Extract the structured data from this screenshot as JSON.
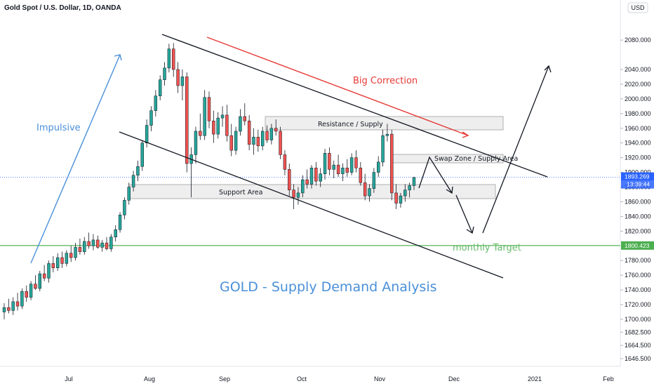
{
  "chart_data": {
    "type": "candlestick",
    "title": "Gold Spot / U.S. Dollar, 1D, OANDA",
    "currency": "USD",
    "ylim": [
      1636,
      2125
    ],
    "y_ticks": [
      2080,
      2040,
      2020,
      2000,
      1980,
      1960,
      1940,
      1920,
      1900,
      1880,
      1860,
      1840,
      1820,
      1780,
      1760,
      1740,
      1720,
      1700,
      1682.5,
      1664.5,
      1646.5
    ],
    "y_tick_labels": [
      "2080.000",
      "2040.000",
      "2020.000",
      "2000.000",
      "1980.000",
      "1960.000",
      "1940.000",
      "1920.000",
      "1900.000",
      "1880.000",
      "1860.000",
      "1840.000",
      "1820.000",
      "1780.000",
      "1760.000",
      "1740.000",
      "1720.000",
      "1700.000",
      "1682.500",
      "1664.500",
      "1646.500"
    ],
    "x_ticks": [
      "Jul",
      "Aug",
      "Sep",
      "Oct",
      "Nov",
      "Dec",
      "2021",
      "Feb"
    ],
    "last_price": {
      "value": 1893.269,
      "label": "1893.269",
      "countdown": "13:39:44",
      "color": "#2962ff"
    },
    "target_price": {
      "value": 1800.423,
      "label": "1800.423",
      "color": "#4caf50"
    },
    "candles": [
      [
        1710,
        1722,
        1700,
        1716
      ],
      [
        1716,
        1728,
        1708,
        1712
      ],
      [
        1712,
        1730,
        1706,
        1724
      ],
      [
        1724,
        1736,
        1712,
        1718
      ],
      [
        1718,
        1742,
        1714,
        1738
      ],
      [
        1738,
        1746,
        1724,
        1730
      ],
      [
        1730,
        1752,
        1726,
        1748
      ],
      [
        1748,
        1760,
        1740,
        1742
      ],
      [
        1742,
        1766,
        1738,
        1762
      ],
      [
        1762,
        1774,
        1752,
        1756
      ],
      [
        1756,
        1780,
        1750,
        1776
      ],
      [
        1776,
        1786,
        1764,
        1770
      ],
      [
        1770,
        1790,
        1766,
        1784
      ],
      [
        1784,
        1792,
        1770,
        1776
      ],
      [
        1776,
        1794,
        1772,
        1790
      ],
      [
        1790,
        1800,
        1778,
        1784
      ],
      [
        1784,
        1804,
        1780,
        1798
      ],
      [
        1798,
        1810,
        1788,
        1792
      ],
      [
        1792,
        1812,
        1788,
        1806
      ],
      [
        1806,
        1818,
        1796,
        1800
      ],
      [
        1800,
        1816,
        1794,
        1808
      ],
      [
        1808,
        1814,
        1796,
        1798
      ],
      [
        1798,
        1808,
        1792,
        1804
      ],
      [
        1804,
        1812,
        1794,
        1796
      ],
      [
        1796,
        1816,
        1792,
        1812
      ],
      [
        1812,
        1828,
        1806,
        1822
      ],
      [
        1822,
        1846,
        1818,
        1842
      ],
      [
        1842,
        1866,
        1836,
        1862
      ],
      [
        1862,
        1886,
        1856,
        1880
      ],
      [
        1880,
        1902,
        1874,
        1896
      ],
      [
        1896,
        1916,
        1888,
        1908
      ],
      [
        1908,
        1944,
        1902,
        1940
      ],
      [
        1940,
        1972,
        1934,
        1964
      ],
      [
        1964,
        1990,
        1956,
        1984
      ],
      [
        1984,
        2012,
        1976,
        2004
      ],
      [
        2004,
        2032,
        1998,
        2026
      ],
      [
        2026,
        2050,
        2018,
        2042
      ],
      [
        2042,
        2075,
        2036,
        2068
      ],
      [
        2068,
        2076,
        2030,
        2040
      ],
      [
        2040,
        2050,
        2008,
        2018
      ],
      [
        2018,
        2040,
        1998,
        2030
      ],
      [
        2030,
        2036,
        1900,
        1912
      ],
      [
        1912,
        1934,
        1866,
        1924
      ],
      [
        1924,
        1962,
        1912,
        1956
      ],
      [
        1956,
        1980,
        1944,
        1950
      ],
      [
        1950,
        2012,
        1944,
        2002
      ],
      [
        2002,
        2010,
        1960,
        1970
      ],
      [
        1970,
        1984,
        1940,
        1952
      ],
      [
        1952,
        1982,
        1946,
        1974
      ],
      [
        1974,
        1990,
        1962,
        1978
      ],
      [
        1978,
        1992,
        1942,
        1950
      ],
      [
        1950,
        1966,
        1922,
        1930
      ],
      [
        1930,
        1962,
        1924,
        1956
      ],
      [
        1956,
        1986,
        1950,
        1976
      ],
      [
        1976,
        1994,
        1964,
        1970
      ],
      [
        1970,
        1978,
        1930,
        1938
      ],
      [
        1938,
        1960,
        1924,
        1948
      ],
      [
        1948,
        1958,
        1928,
        1936
      ],
      [
        1936,
        1962,
        1930,
        1956
      ],
      [
        1956,
        1964,
        1940,
        1944
      ],
      [
        1944,
        1966,
        1938,
        1960
      ],
      [
        1960,
        1972,
        1950,
        1956
      ],
      [
        1956,
        1962,
        1918,
        1924
      ],
      [
        1924,
        1930,
        1896,
        1904
      ],
      [
        1904,
        1912,
        1868,
        1876
      ],
      [
        1876,
        1884,
        1850,
        1866
      ],
      [
        1866,
        1880,
        1856,
        1872
      ],
      [
        1872,
        1896,
        1866,
        1890
      ],
      [
        1890,
        1904,
        1878,
        1884
      ],
      [
        1884,
        1910,
        1878,
        1906
      ],
      [
        1906,
        1914,
        1882,
        1888
      ],
      [
        1888,
        1906,
        1880,
        1898
      ],
      [
        1898,
        1932,
        1890,
        1926
      ],
      [
        1926,
        1934,
        1896,
        1904
      ],
      [
        1904,
        1916,
        1892,
        1910
      ],
      [
        1910,
        1924,
        1894,
        1898
      ],
      [
        1898,
        1912,
        1888,
        1906
      ],
      [
        1906,
        1918,
        1894,
        1900
      ],
      [
        1900,
        1926,
        1896,
        1920
      ],
      [
        1920,
        1930,
        1900,
        1906
      ],
      [
        1906,
        1914,
        1882,
        1886
      ],
      [
        1886,
        1898,
        1862,
        1868
      ],
      [
        1868,
        1884,
        1860,
        1878
      ],
      [
        1878,
        1906,
        1872,
        1900
      ],
      [
        1900,
        1922,
        1894,
        1914
      ],
      [
        1914,
        1958,
        1908,
        1950
      ],
      [
        1950,
        1966,
        1942,
        1952
      ],
      [
        1952,
        1958,
        1862,
        1872
      ],
      [
        1872,
        1884,
        1850,
        1858
      ],
      [
        1858,
        1872,
        1852,
        1868
      ],
      [
        1868,
        1884,
        1860,
        1876
      ],
      [
        1876,
        1886,
        1866,
        1882
      ],
      [
        1882,
        1894,
        1876,
        1893
      ]
    ]
  },
  "annotations": {
    "impulsive": "Impulsive",
    "big_correction": "Big Correction",
    "resistance": "Resistance / Supply",
    "swap_zone": "Swap Zone / Supply Area",
    "support": "Support Area",
    "monthly_target": "monthly Target",
    "analysis_title": "GOLD - Supply Demand Analysis"
  },
  "colors": {
    "up": "#26a69a",
    "down": "#ef5350",
    "blue_text": "#4a90d9",
    "red_text": "#e53935",
    "green_text": "#66bb6a"
  }
}
